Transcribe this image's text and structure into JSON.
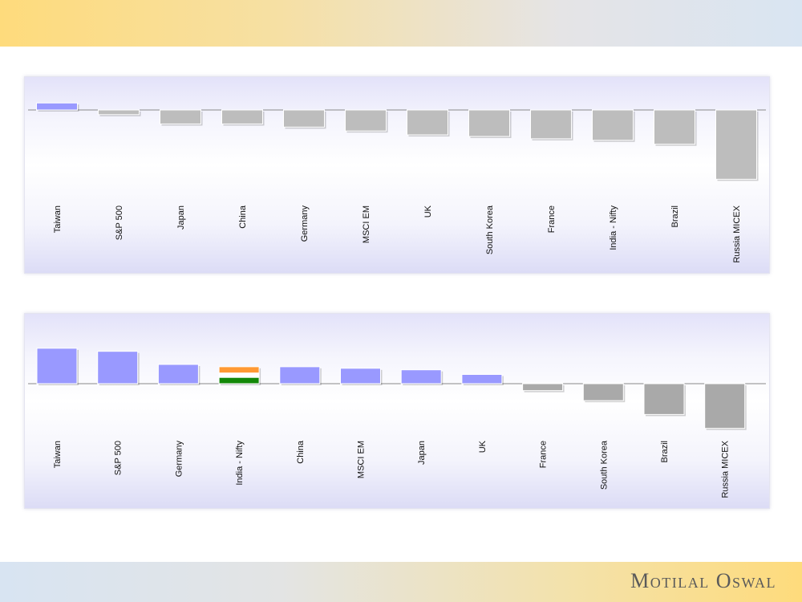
{
  "brand": {
    "name": "Motilal Oswal"
  },
  "colors": {
    "positive": "#9999ff",
    "negative": "#bdbdbd",
    "negative_dark": "#a9a9a9",
    "india_flag": [
      "#ff9933",
      "#ffffff",
      "#138808"
    ]
  },
  "chart_data": [
    {
      "type": "bar",
      "title": "",
      "xlabel": "",
      "ylabel": "",
      "categories": [
        "Taiwan",
        "S&P 500",
        "Japan",
        "China",
        "Germany",
        "MSCI EM",
        "UK",
        "South Korea",
        "France",
        "India - Nifty",
        "Brazil",
        "Russia MICEX"
      ],
      "values": [
        0.9,
        -0.6,
        -1.8,
        -1.8,
        -2.2,
        -2.7,
        -3.2,
        -3.4,
        -3.7,
        -3.9,
        -4.4,
        -8.9
      ],
      "grid": false,
      "legend": false
    },
    {
      "type": "bar",
      "title": "",
      "xlabel": "",
      "ylabel": "",
      "categories": [
        "Taiwan",
        "S&P 500",
        "Germany",
        "India - Nifty",
        "China",
        "MSCI EM",
        "Japan",
        "UK",
        "France",
        "South Korea",
        "Brazil",
        "Russia MICEX"
      ],
      "values": [
        4.6,
        4.2,
        2.5,
        2.2,
        2.2,
        2.0,
        1.8,
        1.2,
        -0.9,
        -2.2,
        -4.0,
        -5.8
      ],
      "highlight": "India - Nifty",
      "grid": false,
      "legend": false
    }
  ]
}
